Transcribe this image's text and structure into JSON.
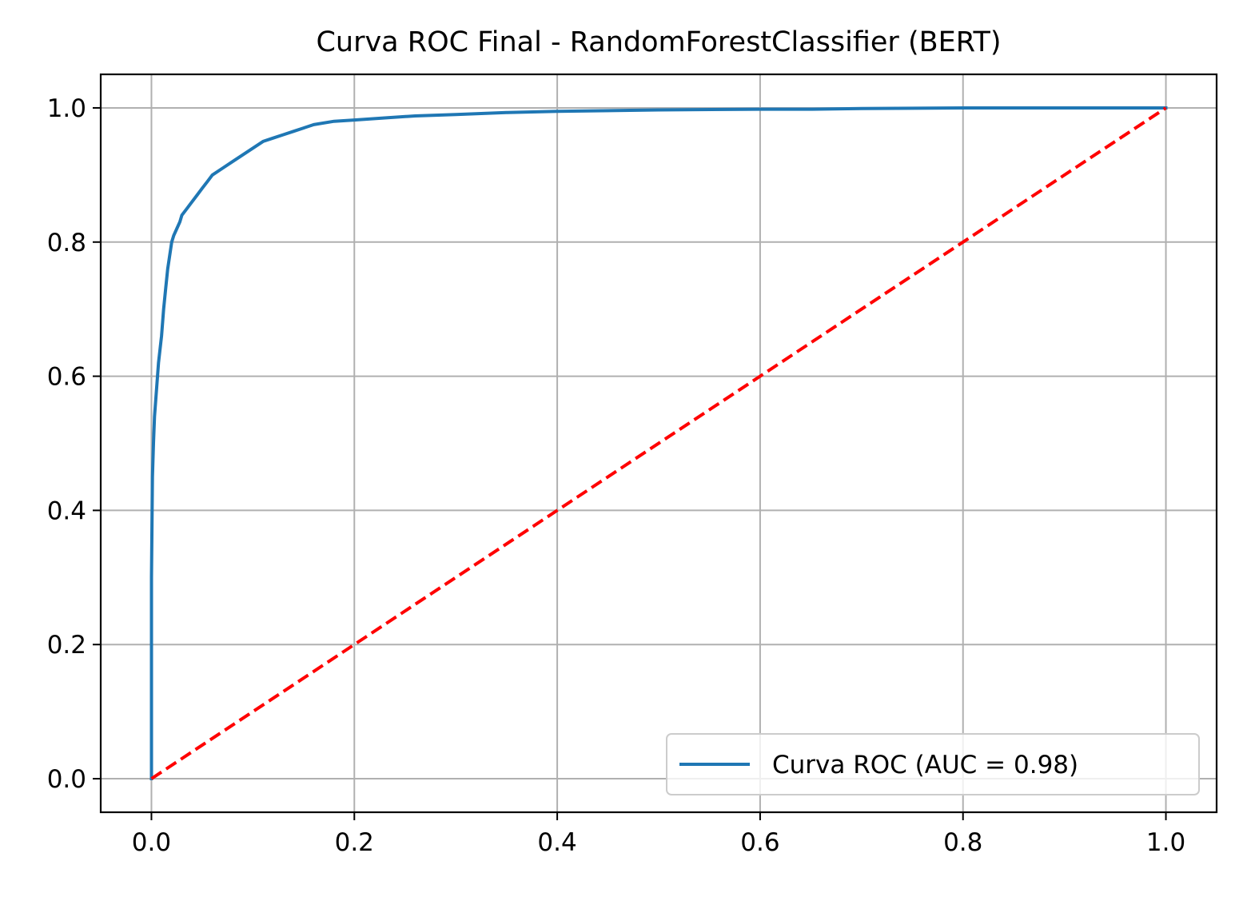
{
  "chart_data": {
    "type": "line",
    "title": "Curva ROC Final - RandomForestClassifier (BERT)",
    "xlabel": "",
    "ylabel": "",
    "xlim": [
      -0.05,
      1.05
    ],
    "ylim": [
      -0.05,
      1.05
    ],
    "x_ticks": [
      0.0,
      0.2,
      0.4,
      0.6,
      0.8,
      1.0
    ],
    "y_ticks": [
      0.0,
      0.2,
      0.4,
      0.6,
      0.8,
      1.0
    ],
    "x_tick_labels": [
      "0.0",
      "0.2",
      "0.4",
      "0.6",
      "0.8",
      "1.0"
    ],
    "y_tick_labels": [
      "0.0",
      "0.2",
      "0.4",
      "0.6",
      "0.8",
      "1.0"
    ],
    "grid": true,
    "legend_position": "lower-right",
    "series": [
      {
        "name": "Curva ROC (AUC = 0.98)",
        "color": "#1f77b4",
        "style": "solid",
        "x": [
          0.0,
          0.0,
          0.001,
          0.002,
          0.003,
          0.005,
          0.007,
          0.01,
          0.012,
          0.014,
          0.016,
          0.018,
          0.02,
          0.022,
          0.025,
          0.028,
          0.03,
          0.035,
          0.04,
          0.045,
          0.05,
          0.055,
          0.06,
          0.07,
          0.08,
          0.09,
          0.1,
          0.11,
          0.12,
          0.13,
          0.14,
          0.15,
          0.16,
          0.18,
          0.2,
          0.23,
          0.26,
          0.3,
          0.35,
          0.4,
          0.5,
          0.6,
          0.65,
          0.7,
          0.8,
          0.9,
          1.0
        ],
        "y": [
          0.0,
          0.3,
          0.45,
          0.5,
          0.54,
          0.58,
          0.62,
          0.66,
          0.7,
          0.73,
          0.76,
          0.78,
          0.8,
          0.81,
          0.82,
          0.83,
          0.84,
          0.85,
          0.86,
          0.87,
          0.88,
          0.89,
          0.9,
          0.91,
          0.92,
          0.93,
          0.94,
          0.95,
          0.955,
          0.96,
          0.965,
          0.97,
          0.975,
          0.98,
          0.982,
          0.985,
          0.988,
          0.99,
          0.993,
          0.995,
          0.997,
          0.998,
          0.998,
          0.999,
          1.0,
          1.0,
          1.0
        ]
      },
      {
        "name": "",
        "color": "#ff0000",
        "style": "dashed",
        "x": [
          0.0,
          1.0
        ],
        "y": [
          0.0,
          1.0
        ]
      }
    ]
  }
}
